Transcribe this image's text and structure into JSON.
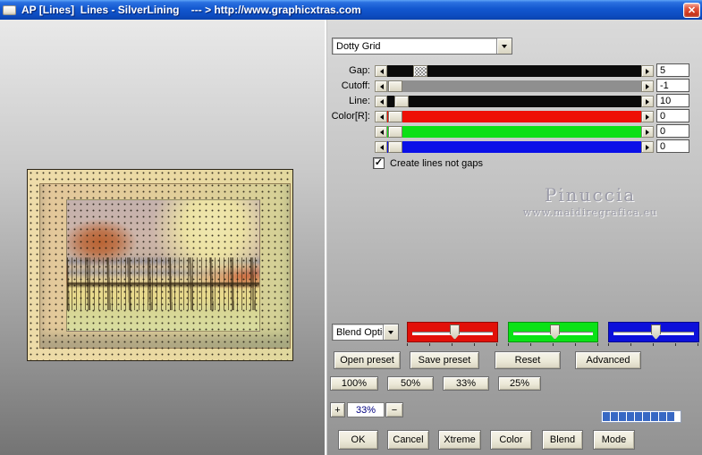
{
  "window": {
    "title": "AP [Lines]  Lines - SilverLining    --- > http://www.graphicxtras.com",
    "close_glyph": "✕"
  },
  "preview": {
    "watermark_name": "Pinuccia",
    "watermark_url": "www.maidiregrafica.eu"
  },
  "effect": {
    "preset_dropdown": "Dotty Grid",
    "sliders": [
      {
        "label": "Gap:",
        "value": "5",
        "track_color": "#0b0b0b"
      },
      {
        "label": "Cutoff:",
        "value": "-1",
        "track_color": "#8f8f8f"
      },
      {
        "label": "Line:",
        "value": "10",
        "track_color": "#0b0b0b"
      },
      {
        "label": "Color[R]:",
        "value": "0",
        "track_color": "#ee0f05"
      },
      {
        "label": "",
        "value": "0",
        "track_color": "#0ce016"
      },
      {
        "label": "",
        "value": "0",
        "track_color": "#0b10e8"
      }
    ],
    "checkbox": {
      "label": "Create lines not gaps",
      "checked": true,
      "glyph": "✓"
    }
  },
  "blend": {
    "dropdown": "Blend Optio",
    "channels": [
      {
        "name": "red",
        "color": "#e21009"
      },
      {
        "name": "green",
        "color": "#0ae216"
      },
      {
        "name": "blue",
        "color": "#0c10da"
      }
    ]
  },
  "buttons": {
    "presets": [
      "Open preset",
      "Save preset",
      "Reset",
      "Advanced"
    ],
    "zoom": [
      "100%",
      "50%",
      "33%",
      "25%"
    ],
    "stepper": {
      "plus": "+",
      "value": "33%",
      "minus": "−"
    },
    "actions": [
      "OK",
      "Cancel",
      "Xtreme",
      "Color",
      "Blend",
      "Mode"
    ]
  },
  "progress": {
    "segments_filled": 9
  }
}
